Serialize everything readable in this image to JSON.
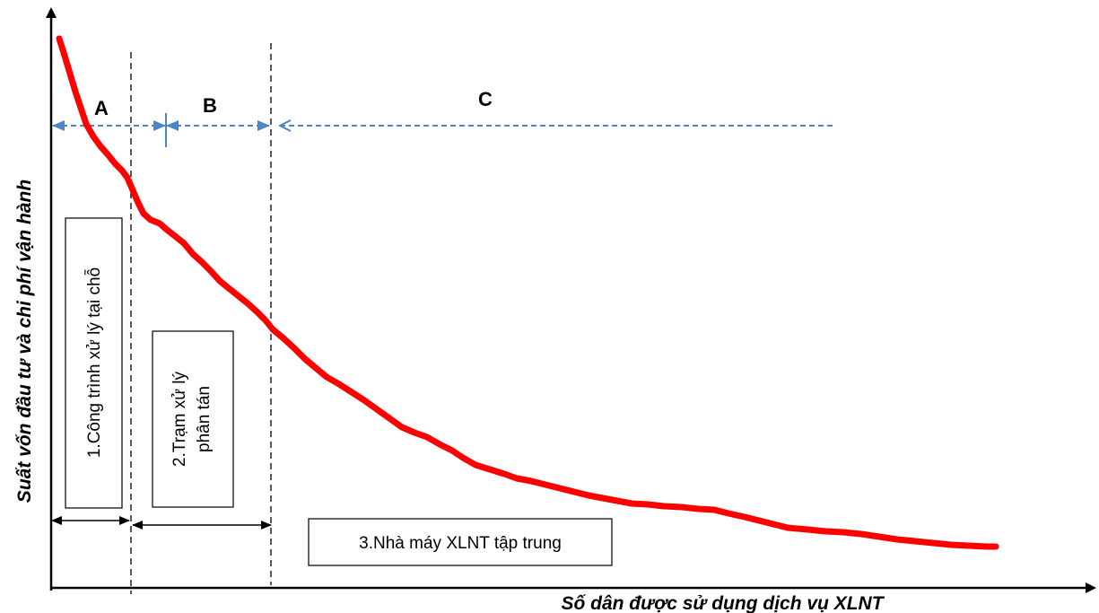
{
  "axes": {
    "y_title": "Suất vốn đầu tư và chi phí vận hành",
    "x_title": "Số dân được sử dụng dịch vụ XLNT"
  },
  "regions": [
    {
      "letter": "A"
    },
    {
      "letter": "B"
    },
    {
      "letter": "C"
    }
  ],
  "boxes": {
    "onsite": {
      "label": "1.Công trình xử lý tại chỗ"
    },
    "distributed": {
      "line1": "2.Trạm xử lý",
      "line2": "phân tán"
    },
    "centralized": {
      "label": "3.Nhà máy XLNT tập trung"
    }
  },
  "colors": {
    "curve": "#ff0000",
    "arrow_blue": "#4a86c8",
    "axis": "#000000"
  }
}
